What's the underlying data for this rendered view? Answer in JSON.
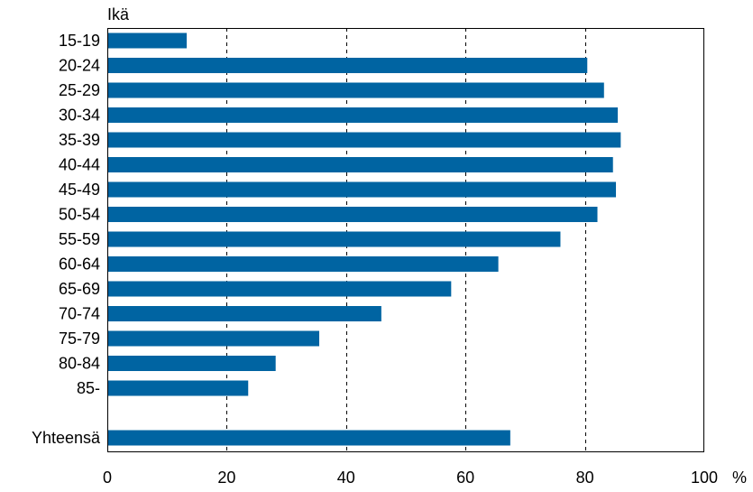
{
  "chart_data": {
    "type": "bar",
    "orientation": "horizontal",
    "ylabel": "Ikä",
    "xlabel": "",
    "x_unit": "%",
    "xlim": [
      0,
      100
    ],
    "x_ticks": [
      0,
      20,
      40,
      60,
      80,
      100
    ],
    "grid": "vertical dashed",
    "categories": [
      "15-19",
      "20-24",
      "25-29",
      "30-34",
      "35-39",
      "40-44",
      "45-49",
      "50-54",
      "55-59",
      "60-64",
      "65-69",
      "70-74",
      "75-79",
      "80-84",
      "85-",
      "Yhteensä"
    ],
    "values": [
      13.3,
      80.4,
      83.2,
      85.5,
      86.0,
      84.7,
      85.2,
      82.1,
      75.9,
      65.5,
      57.6,
      45.9,
      35.5,
      28.2,
      23.6,
      67.5
    ],
    "colors": {
      "bar": "#0064a2",
      "axis": "#000000",
      "background": "#ffffff"
    }
  }
}
